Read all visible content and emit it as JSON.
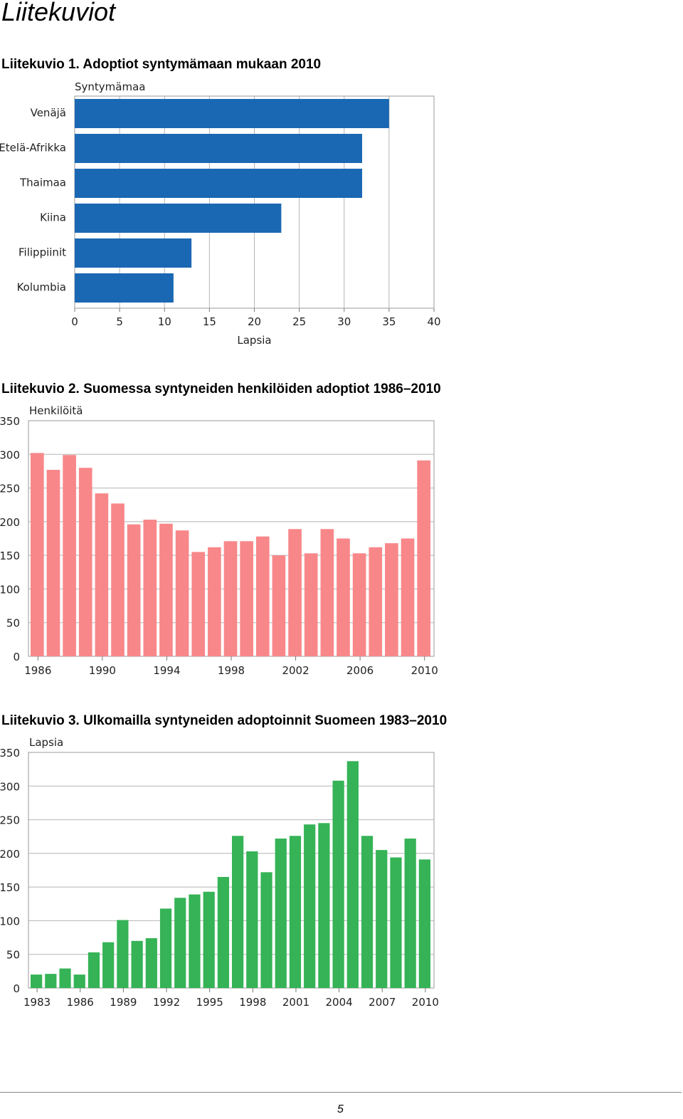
{
  "page": {
    "title": "Liitekuviot",
    "page_number": "5"
  },
  "figures": [
    {
      "caption": "Liitekuvio 1. Adoptiot syntymämaan mukaan 2010"
    },
    {
      "caption": "Liitekuvio 2. Suomessa syntyneiden henkilöiden adoptiot 1986–2010"
    },
    {
      "caption": "Liitekuvio 3. Ulkomailla syntyneiden adoptoinnit Suomeen 1983–2010"
    }
  ],
  "chart_data": [
    {
      "type": "bar",
      "orientation": "horizontal",
      "title": "",
      "category_axis_label": "Syntymämaa",
      "xlabel": "Lapsia",
      "xlim": [
        0,
        40
      ],
      "xticks": [
        0,
        5,
        10,
        15,
        20,
        25,
        30,
        35,
        40
      ],
      "grid": true,
      "color": "#1a68b3",
      "categories": [
        "Venäjä",
        "Etelä-Afrikka",
        "Thaimaa",
        "Kiina",
        "Filippiinit",
        "Kolumbia"
      ],
      "values": [
        35,
        32,
        32,
        23,
        13,
        11
      ]
    },
    {
      "type": "bar",
      "title": "",
      "ylabel": "Henkilöitä",
      "ylim": [
        0,
        350
      ],
      "yticks": [
        0,
        50,
        100,
        150,
        200,
        250,
        300,
        350
      ],
      "grid": true,
      "color": "#f88789",
      "x": [
        1986,
        1987,
        1988,
        1989,
        1990,
        1991,
        1992,
        1993,
        1994,
        1995,
        1996,
        1997,
        1998,
        1999,
        2000,
        2001,
        2002,
        2003,
        2004,
        2005,
        2006,
        2007,
        2008,
        2009,
        2010
      ],
      "xtick_labels": [
        "1986",
        "1990",
        "1994",
        "1998",
        "2002",
        "2006",
        "2010"
      ],
      "values": [
        302,
        277,
        299,
        280,
        242,
        227,
        196,
        203,
        197,
        187,
        155,
        162,
        171,
        171,
        178,
        150,
        189,
        153,
        189,
        175,
        153,
        162,
        168,
        175,
        291
      ]
    },
    {
      "type": "bar",
      "title": "",
      "ylabel": "Lapsia",
      "ylim": [
        0,
        350
      ],
      "yticks": [
        0,
        50,
        100,
        150,
        200,
        250,
        300,
        350
      ],
      "grid": true,
      "color": "#35b356",
      "x": [
        1983,
        1984,
        1985,
        1986,
        1987,
        1988,
        1989,
        1990,
        1991,
        1992,
        1993,
        1994,
        1995,
        1996,
        1997,
        1998,
        1999,
        2000,
        2001,
        2002,
        2003,
        2004,
        2005,
        2006,
        2007,
        2008,
        2009,
        2010
      ],
      "xtick_labels": [
        "1983",
        "1986",
        "1989",
        "1992",
        "1995",
        "1998",
        "2001",
        "2004",
        "2007",
        "2010"
      ],
      "values": [
        20,
        21,
        29,
        20,
        53,
        68,
        101,
        70,
        74,
        118,
        134,
        139,
        143,
        165,
        226,
        203,
        172,
        222,
        226,
        243,
        245,
        308,
        337,
        226,
        205,
        194,
        222,
        191
      ]
    }
  ]
}
